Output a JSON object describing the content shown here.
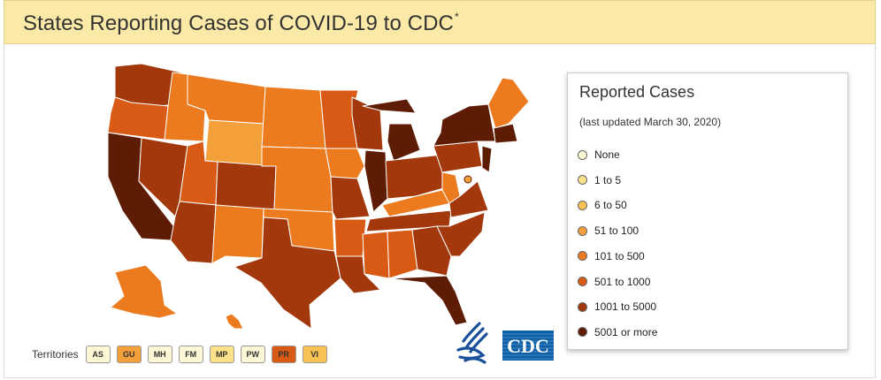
{
  "header": {
    "title": "States Reporting Cases of COVID-19 to CDC",
    "title_mark": "*"
  },
  "legend": {
    "title": "Reported Cases",
    "subtitle": "(last updated March 30, 2020)",
    "items": [
      {
        "label": "None",
        "color": "#fdf7d6"
      },
      {
        "label": "1 to 5",
        "color": "#fce08a"
      },
      {
        "label": "6 to 50",
        "color": "#f8c255"
      },
      {
        "label": "51 to 100",
        "color": "#f4a03a"
      },
      {
        "label": "101 to 500",
        "color": "#ec7a1e"
      },
      {
        "label": "501 to 1000",
        "color": "#d85a14"
      },
      {
        "label": "1001 to 5000",
        "color": "#a2380b"
      },
      {
        "label": "5001 or more",
        "color": "#5e1c05"
      }
    ]
  },
  "territories": {
    "label": "Territories",
    "items": [
      {
        "code": "AS",
        "color": "#fdf7d6"
      },
      {
        "code": "GU",
        "color": "#f4a03a"
      },
      {
        "code": "MH",
        "color": "#fdf7d6"
      },
      {
        "code": "FM",
        "color": "#fdf7d6"
      },
      {
        "code": "MP",
        "color": "#fce08a"
      },
      {
        "code": "PW",
        "color": "#fdf7d6"
      },
      {
        "code": "PR",
        "color": "#d85a14"
      },
      {
        "code": "VI",
        "color": "#f8c255"
      }
    ]
  },
  "logos": {
    "hhs": "hhs-eagle-logo",
    "cdc": "CDC"
  },
  "map_regions": [
    {
      "id": "pacific-nw",
      "color": "#a2380b"
    },
    {
      "id": "oregon",
      "color": "#d85a14"
    },
    {
      "id": "california",
      "color": "#5e1c05"
    },
    {
      "id": "nevada",
      "color": "#a2380b"
    },
    {
      "id": "idaho",
      "color": "#ec7a1e"
    },
    {
      "id": "montana",
      "color": "#ec7a1e"
    },
    {
      "id": "wyoming",
      "color": "#f4a03a"
    },
    {
      "id": "utah",
      "color": "#d85a14"
    },
    {
      "id": "arizona",
      "color": "#a2380b"
    },
    {
      "id": "colorado",
      "color": "#a2380b"
    },
    {
      "id": "new-mexico",
      "color": "#ec7a1e"
    },
    {
      "id": "dakotas",
      "color": "#ec7a1e"
    },
    {
      "id": "nebraska-kansas",
      "color": "#ec7a1e"
    },
    {
      "id": "oklahoma",
      "color": "#ec7a1e"
    },
    {
      "id": "texas",
      "color": "#a2380b"
    },
    {
      "id": "minnesota",
      "color": "#d85a14"
    },
    {
      "id": "iowa",
      "color": "#ec7a1e"
    },
    {
      "id": "missouri",
      "color": "#a2380b"
    },
    {
      "id": "arkansas",
      "color": "#d85a14"
    },
    {
      "id": "louisiana",
      "color": "#a2380b"
    },
    {
      "id": "wisconsin",
      "color": "#a2380b"
    },
    {
      "id": "illinois",
      "color": "#5e1c05"
    },
    {
      "id": "michigan",
      "color": "#5e1c05"
    },
    {
      "id": "indiana-ohio",
      "color": "#a2380b"
    },
    {
      "id": "kentucky",
      "color": "#ec7a1e"
    },
    {
      "id": "tennessee",
      "color": "#a2380b"
    },
    {
      "id": "mississippi",
      "color": "#d85a14"
    },
    {
      "id": "alabama",
      "color": "#d85a14"
    },
    {
      "id": "georgia",
      "color": "#a2380b"
    },
    {
      "id": "florida",
      "color": "#5e1c05"
    },
    {
      "id": "carolinas",
      "color": "#a2380b"
    },
    {
      "id": "virginia",
      "color": "#a2380b"
    },
    {
      "id": "west-virginia",
      "color": "#ec7a1e"
    },
    {
      "id": "pennsylvania",
      "color": "#a2380b"
    },
    {
      "id": "new-york",
      "color": "#5e1c05"
    },
    {
      "id": "new-jersey",
      "color": "#5e1c05"
    },
    {
      "id": "new-england",
      "color": "#ec7a1e"
    },
    {
      "id": "massachusetts",
      "color": "#5e1c05"
    },
    {
      "id": "alaska",
      "color": "#ec7a1e"
    },
    {
      "id": "hawaii",
      "color": "#ec7a1e"
    },
    {
      "id": "dc-marker",
      "color": "#f4a03a"
    }
  ]
}
